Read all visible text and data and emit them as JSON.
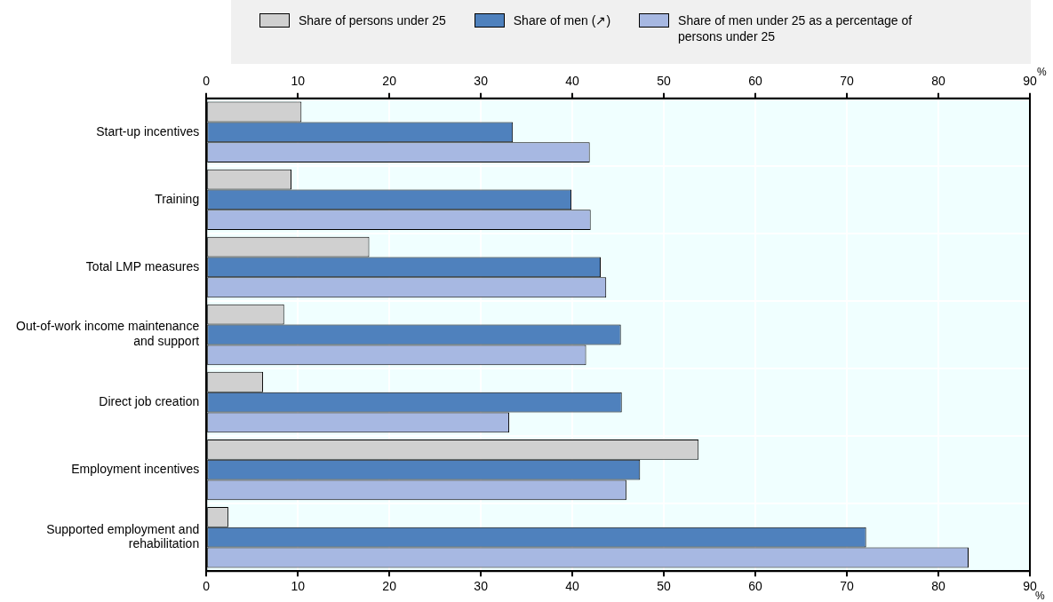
{
  "chart_data": {
    "type": "bar",
    "orientation": "horizontal",
    "xlabel": "%",
    "x2label": "%",
    "categories": [
      "Start-up incentives",
      "Training",
      "Total LMP measures",
      "Out-of-work income maintenance and support",
      "Direct job creation",
      "Employment incentives",
      "Supported employment and rehabilitation"
    ],
    "series": [
      {
        "name": "Share of persons under 25",
        "color": "#d0d0d0",
        "values": [
          10.4,
          9.3,
          17.8,
          8.5,
          6.2,
          53.8,
          2.4
        ]
      },
      {
        "name": "Share of men (↗)",
        "color": "#4f81bd",
        "values": [
          33.5,
          39.9,
          43.1,
          45.3,
          45.4,
          47.4,
          72.1
        ]
      },
      {
        "name": "Share of men under 25 as a percentage of persons under 25",
        "color": "#a7b8e2",
        "values": [
          41.9,
          42.0,
          43.7,
          41.5,
          33.1,
          45.9,
          83.3
        ]
      }
    ],
    "xlim": [
      0,
      90
    ],
    "xticks": [
      0,
      10,
      20,
      30,
      40,
      50,
      60,
      70,
      80,
      90
    ],
    "x2lim": [
      0,
      90
    ],
    "x2ticks": [
      0,
      10,
      20,
      30,
      40,
      50,
      60,
      70,
      80,
      90
    ],
    "grid": true,
    "legend": "top"
  }
}
